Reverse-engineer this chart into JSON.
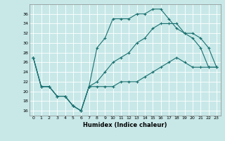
{
  "xlabel": "Humidex (Indice chaleur)",
  "background_color": "#c8e8e8",
  "grid_color": "#ffffff",
  "line_color": "#1a7070",
  "xlim": [
    -0.5,
    23.5
  ],
  "ylim": [
    15,
    38
  ],
  "xticks": [
    0,
    1,
    2,
    3,
    4,
    5,
    6,
    7,
    8,
    9,
    10,
    11,
    12,
    13,
    14,
    15,
    16,
    17,
    18,
    19,
    20,
    21,
    22,
    23
  ],
  "yticks": [
    16,
    18,
    20,
    22,
    24,
    26,
    28,
    30,
    32,
    34,
    36
  ],
  "line1_x": [
    0,
    1,
    2,
    3,
    4,
    5,
    6,
    7,
    8,
    9,
    10,
    11,
    12,
    13,
    14,
    15,
    16,
    17,
    18,
    19,
    20,
    21,
    22,
    23
  ],
  "line1_y": [
    27,
    21,
    21,
    19,
    19,
    17,
    16,
    21,
    29,
    31,
    35,
    35,
    35,
    36,
    36,
    37,
    37,
    35,
    33,
    32,
    31,
    29,
    25,
    25
  ],
  "line2_x": [
    0,
    1,
    2,
    3,
    4,
    5,
    6,
    7,
    8,
    9,
    10,
    11,
    12,
    13,
    14,
    15,
    16,
    17,
    18,
    19,
    20,
    21,
    22,
    23
  ],
  "line2_y": [
    27,
    21,
    21,
    19,
    19,
    17,
    16,
    21,
    22,
    24,
    26,
    27,
    28,
    30,
    31,
    33,
    34,
    34,
    34,
    32,
    32,
    31,
    29,
    25
  ],
  "line3_x": [
    0,
    1,
    2,
    3,
    4,
    5,
    6,
    7,
    8,
    9,
    10,
    11,
    12,
    13,
    14,
    15,
    16,
    17,
    18,
    19,
    20,
    21,
    22,
    23
  ],
  "line3_y": [
    27,
    21,
    21,
    19,
    19,
    17,
    16,
    21,
    21,
    21,
    21,
    22,
    22,
    22,
    23,
    24,
    25,
    26,
    27,
    26,
    25,
    25,
    25,
    25
  ]
}
